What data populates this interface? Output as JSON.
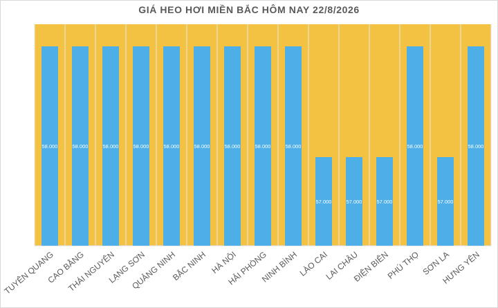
{
  "chart_data": {
    "type": "bar",
    "title": "GIÁ HEO HƠI MIỀN BẮC HÔM NAY 22/8/2026",
    "categories": [
      "TUYÊN QUANG",
      "CAO BẰNG",
      "THÁI NGUYÊN",
      "LẠNG SƠN",
      "QUẢNG NINH",
      "BẮC NINH",
      "HÀ NỘI",
      "HẢI PHÒNG",
      "NINH BÌNH",
      "LÀO CAI",
      "LAI CHÂU",
      "ĐIỆN BIÊN",
      "PHÚ THỌ",
      "SƠN LA",
      "HƯNG YÊN"
    ],
    "values": [
      58000,
      58000,
      58000,
      58000,
      58000,
      58000,
      58000,
      58000,
      58000,
      57000,
      57000,
      57000,
      58000,
      57000,
      58000
    ],
    "data_labels": [
      "58.000",
      "58.000",
      "58.000",
      "58.000",
      "58.000",
      "58.000",
      "58.000",
      "58.000",
      "58.000",
      "57.000",
      "57.000",
      "57.000",
      "58.000",
      "57.000",
      "58.000"
    ],
    "ylim": [
      56200,
      58200
    ],
    "grid": true,
    "colors": {
      "bar": "#4daee8",
      "plot_background": "#f4c242",
      "gridline": "#e5e5e5"
    }
  }
}
